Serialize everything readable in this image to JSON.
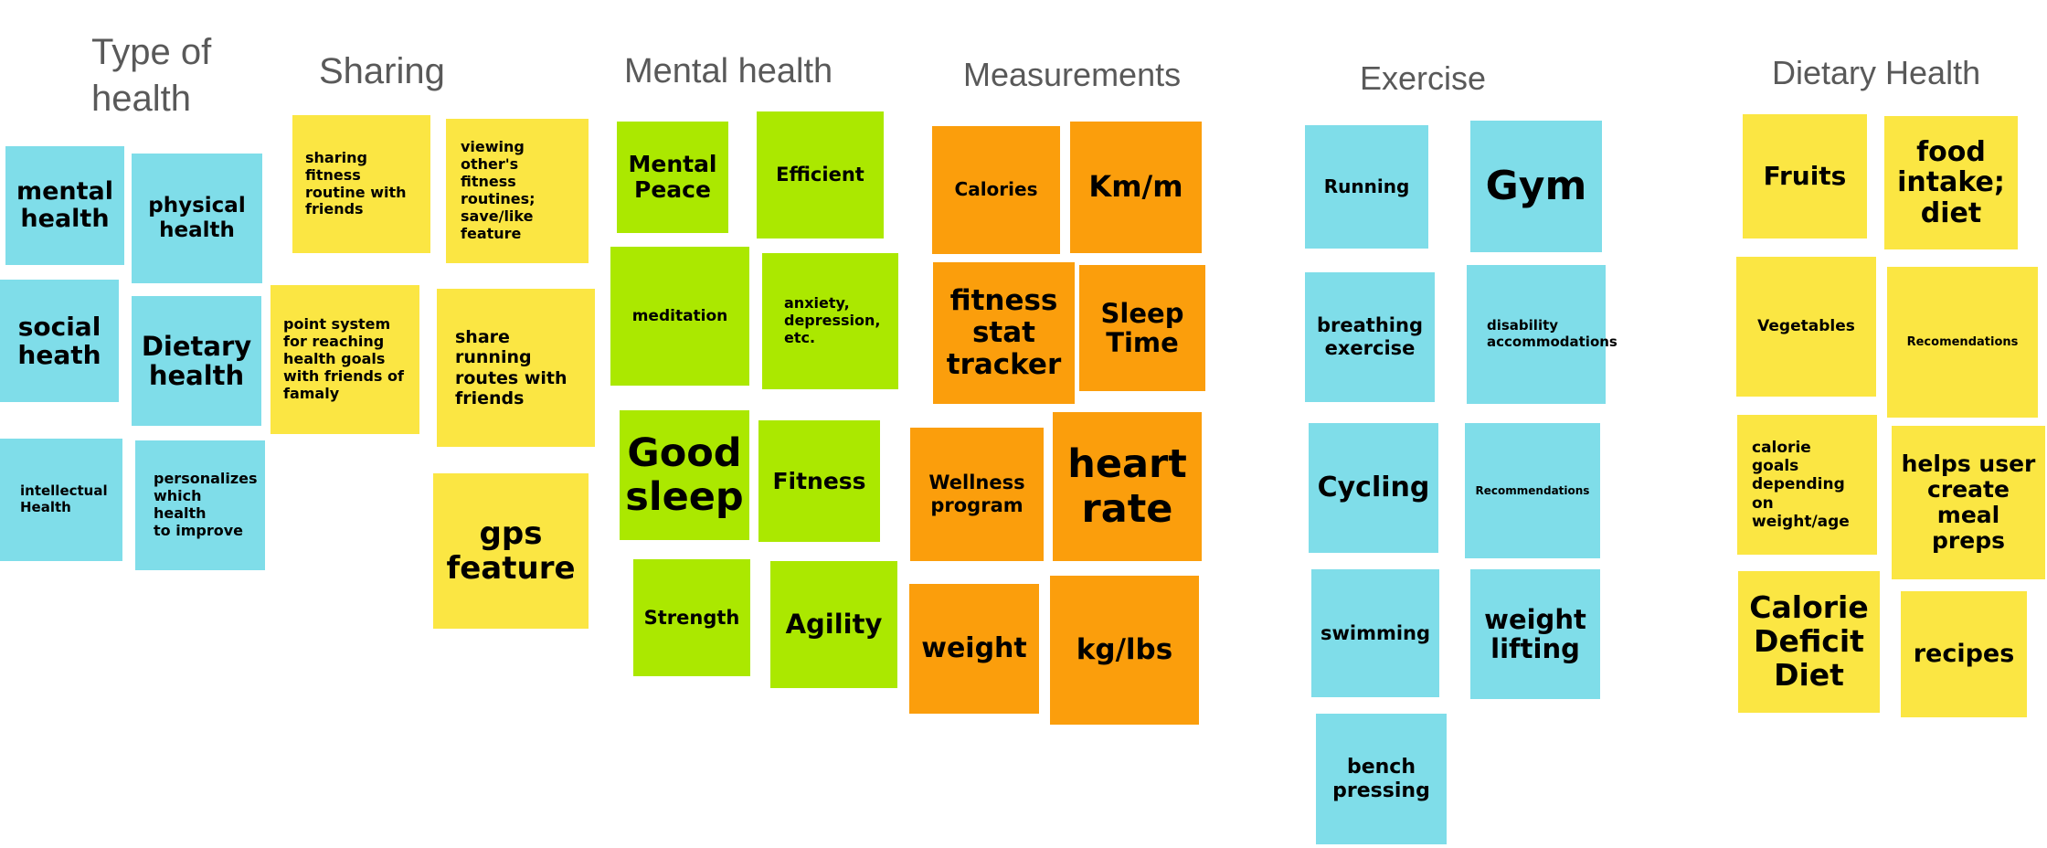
{
  "colors": {
    "blue": "#7fdde9",
    "yellow": "#fbe643",
    "green": "#abe800",
    "orange": "#fb9e0c",
    "heading": "#595959"
  },
  "columns": [
    {
      "heading": "Type of\nhealth",
      "notes": [
        {
          "text": "mental\nhealth",
          "color": "blue"
        },
        {
          "text": "physical\nhealth",
          "color": "blue"
        },
        {
          "text": "social\nheath",
          "color": "blue"
        },
        {
          "text": "Dietary\nhealth",
          "color": "blue"
        },
        {
          "text": "intellectual\nHealth",
          "color": "blue"
        },
        {
          "text": "personalizes\nwhich health\nto improve",
          "color": "blue"
        }
      ]
    },
    {
      "heading": "Sharing",
      "notes": [
        {
          "text": "sharing fitness\nroutine with\nfriends",
          "color": "yellow"
        },
        {
          "text": "viewing\nother's fitness\nroutines;\nsave/like\nfeature",
          "color": "yellow"
        },
        {
          "text": "point system\nfor reaching\nhealth goals\nwith friends of\nfamaly",
          "color": "yellow"
        },
        {
          "text": "share running\nroutes with\nfriends",
          "color": "yellow"
        },
        {
          "text": "gps\nfeature",
          "color": "yellow"
        }
      ]
    },
    {
      "heading": "Mental health",
      "notes": [
        {
          "text": "Mental\nPeace",
          "color": "green"
        },
        {
          "text": "Efficient",
          "color": "green"
        },
        {
          "text": "meditation",
          "color": "green"
        },
        {
          "text": "anxiety,\ndepression,\netc.",
          "color": "green"
        },
        {
          "text": "Good\nsleep",
          "color": "green"
        },
        {
          "text": "Fitness",
          "color": "green"
        },
        {
          "text": "Strength",
          "color": "green"
        },
        {
          "text": "Agility",
          "color": "green"
        }
      ]
    },
    {
      "heading": "Measurements",
      "notes": [
        {
          "text": "Calories",
          "color": "orange"
        },
        {
          "text": "Km/m",
          "color": "orange"
        },
        {
          "text": "fitness\nstat\ntracker",
          "color": "orange"
        },
        {
          "text": "Sleep\nTime",
          "color": "orange"
        },
        {
          "text": "Wellness\nprogram",
          "color": "orange"
        },
        {
          "text": "heart\nrate",
          "color": "orange"
        },
        {
          "text": "weight",
          "color": "orange"
        },
        {
          "text": "kg/lbs",
          "color": "orange"
        }
      ]
    },
    {
      "heading": "Exercise",
      "notes": [
        {
          "text": "Running",
          "color": "blue"
        },
        {
          "text": "Gym",
          "color": "blue"
        },
        {
          "text": "breathing\nexercise",
          "color": "blue"
        },
        {
          "text": "disability\naccommodations",
          "color": "blue"
        },
        {
          "text": "Cycling",
          "color": "blue"
        },
        {
          "text": "Recommendations",
          "color": "blue"
        },
        {
          "text": "swimming",
          "color": "blue"
        },
        {
          "text": "weight\nlifting",
          "color": "blue"
        },
        {
          "text": "bench\npressing",
          "color": "blue"
        }
      ]
    },
    {
      "heading": "Dietary Health",
      "notes": [
        {
          "text": "Fruits",
          "color": "yellow"
        },
        {
          "text": "food\nintake;\ndiet",
          "color": "yellow"
        },
        {
          "text": "Vegetables",
          "color": "yellow"
        },
        {
          "text": "Recomendations",
          "color": "yellow"
        },
        {
          "text": "calorie goals\ndepending on\nweight/age",
          "color": "yellow"
        },
        {
          "text": "helps user\ncreate\nmeal\npreps",
          "color": "yellow"
        },
        {
          "text": "Calorie\nDeficit\nDiet",
          "color": "yellow"
        },
        {
          "text": "recipes",
          "color": "yellow"
        }
      ]
    }
  ]
}
